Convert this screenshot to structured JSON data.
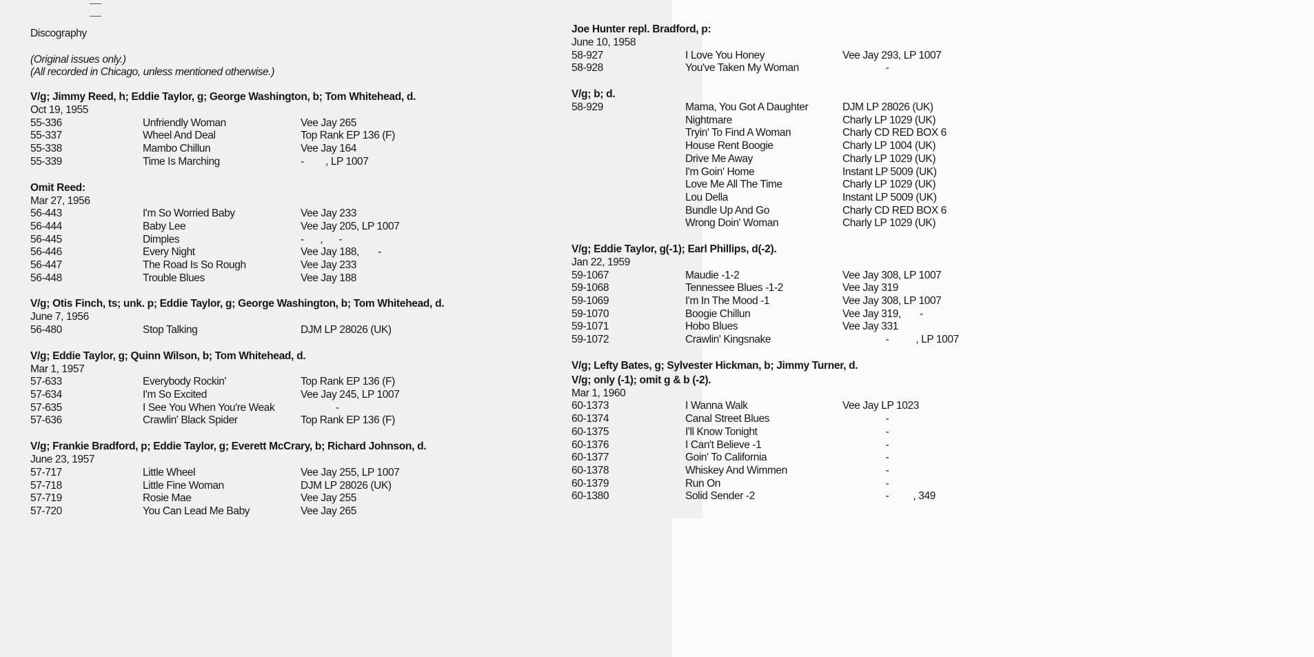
{
  "left_page": {
    "title": "Discography",
    "notes": [
      "(Original issues only.)",
      "(All recorded in Chicago, unless mentioned otherwise.)"
    ],
    "sessions": [
      {
        "personnel": "V/g;  Jimmy Reed, h; Eddie Taylor, g; George Washington, b; Tom Whitehead, d.",
        "date": "Oct 19, 1955",
        "rows": [
          [
            "55-336",
            "Unfriendly Woman",
            "Vee Jay 265"
          ],
          [
            "55-337",
            "Wheel And Deal",
            "Top Rank EP 136 (F)"
          ],
          [
            "55-338",
            "Mambo Chillun",
            "Vee Jay 164"
          ],
          [
            "55-339",
            "Time Is Marching",
            "-        , LP 1007"
          ]
        ]
      },
      {
        "personnel": "Omit Reed:",
        "date": "Mar 27, 1956",
        "rows": [
          [
            "56-443",
            "I'm So Worried Baby",
            "Vee Jay 233"
          ],
          [
            "56-444",
            "Baby Lee",
            "Vee Jay 205, LP 1007"
          ],
          [
            "56-445",
            "Dimples",
            "-      ,      -"
          ],
          [
            "56-446",
            "Every Night",
            "Vee Jay 188,       -"
          ],
          [
            "56-447",
            "The Road Is So Rough",
            "Vee Jay 233"
          ],
          [
            "56-448",
            "Trouble Blues",
            "Vee Jay 188"
          ]
        ]
      },
      {
        "personnel": "V/g;  Otis Finch, ts; unk. p; Eddie Taylor, g; George Washington, b; Tom Whitehead, d.",
        "date": "June 7, 1956",
        "rows": [
          [
            "56-480",
            "Stop Talking",
            "DJM LP 28026 (UK)"
          ]
        ]
      },
      {
        "personnel": "V/g;  Eddie Taylor, g; Quinn Wilson, b; Tom Whitehead, d.",
        "date": "Mar 1, 1957",
        "rows": [
          [
            "57-633",
            "Everybody Rockin'",
            "Top Rank EP 136 (F)"
          ],
          [
            "57-634",
            "I'm So Excited",
            "Vee Jay 245, LP 1007"
          ],
          [
            "57-635",
            "I See You When You're Weak",
            "             -"
          ],
          [
            "57-636",
            "Crawlin' Black Spider",
            "Top Rank EP 136 (F)"
          ]
        ]
      },
      {
        "personnel": "V/g;  Frankie Bradford, p; Eddie Taylor, g; Everett McCrary, b; Richard Johnson, d.",
        "date": "June 23, 1957",
        "rows": [
          [
            "57-717",
            "Little Wheel",
            "Vee Jay 255, LP 1007"
          ],
          [
            "57-718",
            "Little Fine Woman",
            "DJM LP 28026 (UK)"
          ],
          [
            "57-719",
            "Rosie Mae",
            "Vee Jay 255"
          ],
          [
            "57-720",
            "You Can Lead Me Baby",
            "Vee Jay 265"
          ]
        ]
      }
    ]
  },
  "right_page": {
    "sessions": [
      {
        "personnel": "Joe Hunter repl. Bradford, p:",
        "date": "June 10, 1958",
        "rows": [
          [
            "58-927",
            "I Love You Honey",
            "Vee Jay 293, LP 1007"
          ],
          [
            "58-928",
            "You've Taken My Woman",
            "                -"
          ]
        ]
      },
      {
        "personnel": "V/g; b; d.",
        "date": "",
        "rows": [
          [
            "58-929",
            "Mama, You Got A Daughter",
            "DJM LP 28026 (UK)"
          ],
          [
            "",
            "Nightmare",
            "Charly LP 1029 (UK)"
          ],
          [
            "",
            "Tryin' To  Find A Woman",
            "Charly CD RED BOX 6"
          ],
          [
            "",
            "House Rent Boogie",
            "Charly LP 1004 (UK)"
          ],
          [
            "",
            "Drive Me Away",
            "Charly LP 1029 (UK)"
          ],
          [
            "",
            "I'm Goin' Home",
            "Instant LP 5009 (UK)"
          ],
          [
            "",
            "Love Me All The Time",
            "Charly LP 1029 (UK)"
          ],
          [
            "",
            "Lou Della",
            "Instant LP 5009 (UK)"
          ],
          [
            "",
            "Bundle Up And Go",
            "Charly CD RED BOX 6"
          ],
          [
            "",
            "Wrong Doin' Woman",
            "Charly LP 1029 (UK)"
          ]
        ]
      },
      {
        "personnel": "V/g;  Eddie Taylor, g(-1); Earl Phillips, d(-2).",
        "date": "Jan 22, 1959",
        "rows": [
          [
            "59-1067",
            "Maudie -1-2",
            "Vee Jay 308, LP 1007"
          ],
          [
            "59-1068",
            "Tennessee Blues -1-2",
            "Vee Jay 319"
          ],
          [
            "59-1069",
            "I'm In The Mood -1",
            "Vee Jay 308, LP 1007"
          ],
          [
            "59-1070",
            "Boogie Chillun",
            "Vee Jay 319,       -"
          ],
          [
            "59-1071",
            "Hobo Blues",
            "Vee Jay 331"
          ],
          [
            "59-1072",
            "Crawlin' Kingsnake",
            "                -          , LP 1007"
          ]
        ]
      },
      {
        "personnel": "V/g;  Lefty Bates, g; Sylvester Hickman, b; Jimmy Turner, d.",
        "personnel2": "V/g;  only  (-1); omit g & b (-2).",
        "date": "Mar 1, 1960",
        "rows": [
          [
            "60-1373",
            "I Wanna Walk",
            "Vee Jay LP 1023"
          ],
          [
            "60-1374",
            "Canal Street Blues",
            "                -"
          ],
          [
            "60-1375",
            "I'll Know Tonight",
            "                -"
          ],
          [
            "60-1376",
            "I Can't Believe -1",
            "                -"
          ],
          [
            "60-1377",
            "Goin' To California",
            "                -"
          ],
          [
            "60-1378",
            "Whiskey And Wimmen",
            "                -"
          ],
          [
            "60-1379",
            "Run On",
            "                -"
          ],
          [
            "60-1380",
            "Solid Sender -2",
            "                -         , 349"
          ]
        ]
      }
    ]
  }
}
